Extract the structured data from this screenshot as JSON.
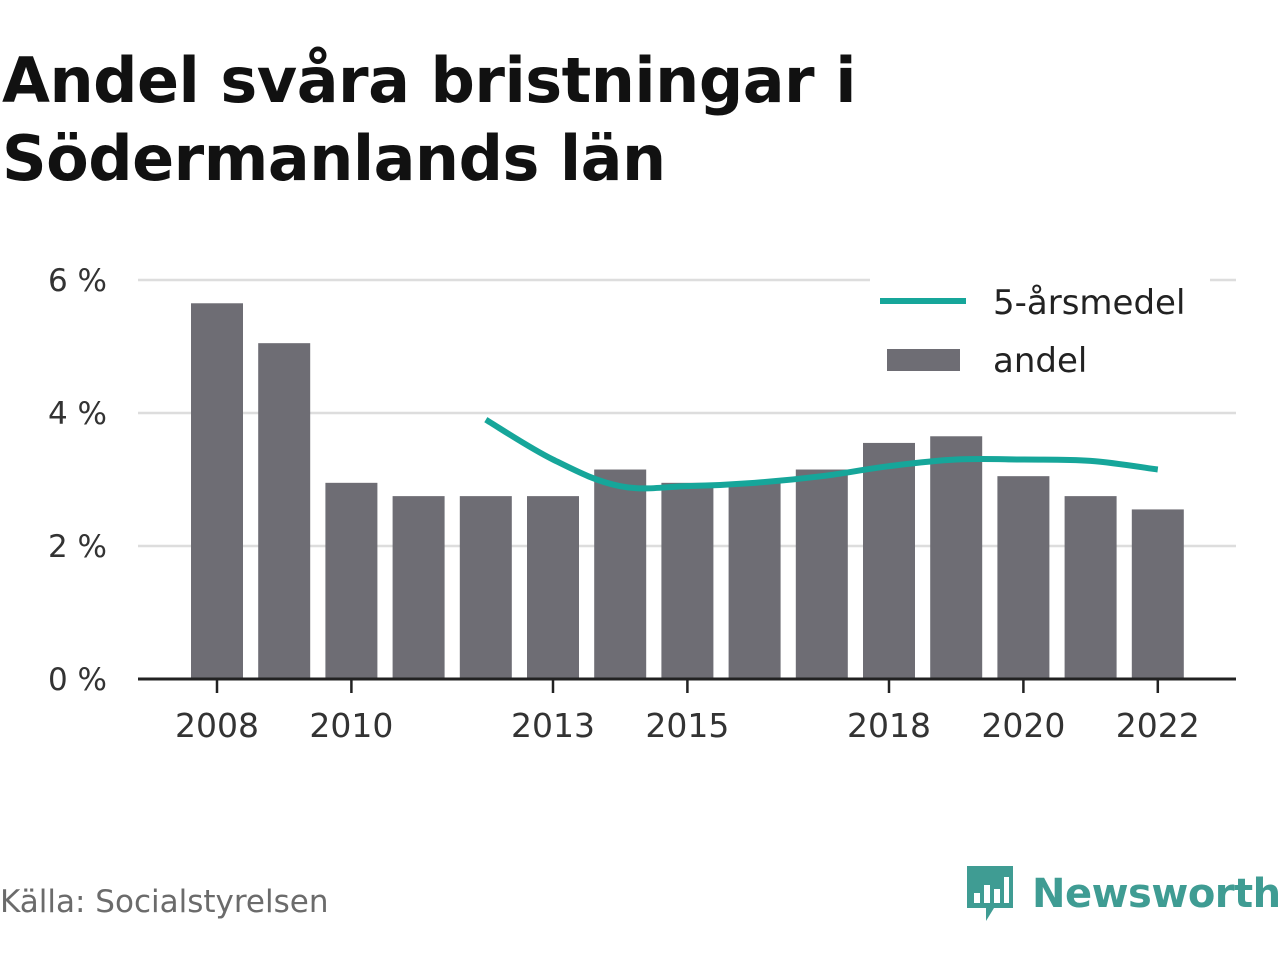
{
  "title": "Andel svåra bristningar i Södermanlands län",
  "source": "Källa: Socialstyrelsen",
  "brand": {
    "name": "Newsworthy",
    "color": "#3f9c93"
  },
  "colors": {
    "bar": "#6e6d74",
    "line": "#16a69a",
    "grid": "#dddddd",
    "axis": "#222222",
    "tick_text": "#333333"
  },
  "chart_data": {
    "type": "bar",
    "x": [
      2008,
      2009,
      2010,
      2011,
      2012,
      2013,
      2014,
      2015,
      2016,
      2017,
      2018,
      2019,
      2020,
      2021,
      2022
    ],
    "x_tick_labels": [
      "2008",
      "2010",
      "2013",
      "2015",
      "2018",
      "2020",
      "2022"
    ],
    "y_tick_labels": [
      "0 %",
      "2 %",
      "4 %",
      "6 %"
    ],
    "ylim": [
      0,
      6
    ],
    "grid": true,
    "legend_position": "top-right",
    "series": [
      {
        "name": "andel",
        "type": "bar",
        "values": [
          5.65,
          5.05,
          2.95,
          2.75,
          2.75,
          2.75,
          3.15,
          2.95,
          2.95,
          3.15,
          3.55,
          3.65,
          3.05,
          2.75,
          2.55
        ]
      },
      {
        "name": "5-årsmedel",
        "type": "line",
        "values": [
          null,
          null,
          null,
          null,
          3.9,
          3.3,
          2.9,
          2.9,
          2.95,
          3.05,
          3.2,
          3.3,
          3.3,
          3.28,
          3.15
        ]
      }
    ]
  }
}
